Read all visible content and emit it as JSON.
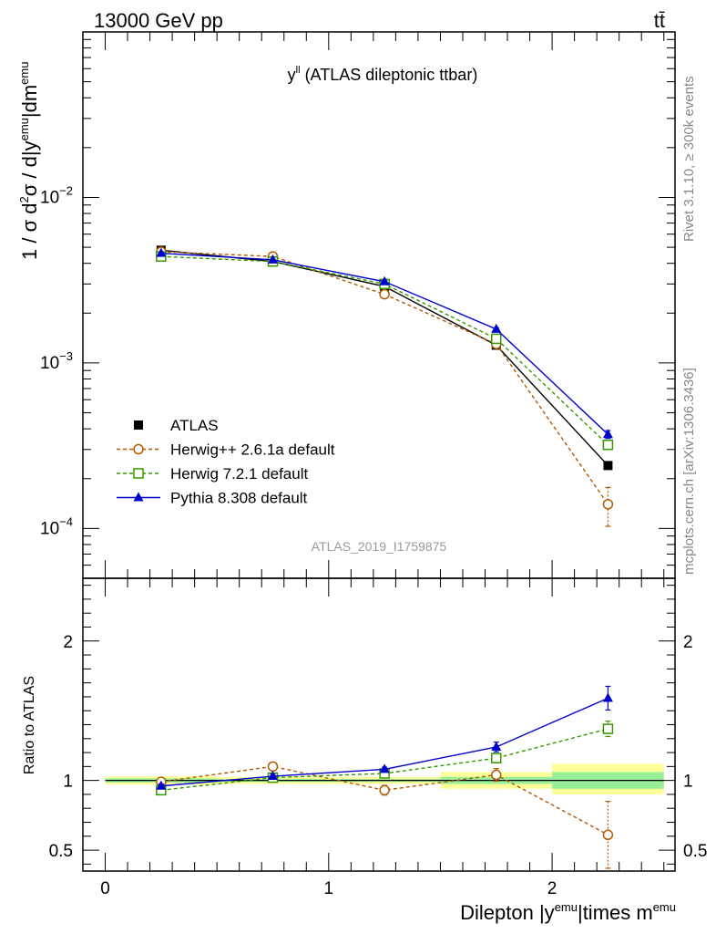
{
  "header": {
    "energy_label": "13000 GeV pp",
    "process_label": "tt̄"
  },
  "side": {
    "rivet_label": "Rivet 3.1.10, ≥ 300k events",
    "source_label": "mcplots.cern.ch [arXiv:1306.3436]"
  },
  "chart_data": [
    {
      "type": "line",
      "panel": "main",
      "title_main": "y",
      "title_sup": "ll",
      "title_rest": " (ATLAS dileptonic ttbar)",
      "analysis_label": "ATLAS_2019_I1759875",
      "ylabel": "1 / σ d²σ / d|y^emu|dm^emu",
      "yscale": "log",
      "ylim": [
        5e-05,
        0.1
      ],
      "y_ticks": [
        {
          "value": 0.01,
          "base": "10",
          "exp": "−2"
        },
        {
          "value": 0.001,
          "base": "10",
          "exp": "−3"
        },
        {
          "value": 0.0001,
          "base": "10",
          "exp": "−4"
        }
      ],
      "x": [
        0.25,
        0.75,
        1.25,
        1.75,
        2.25
      ],
      "series": [
        {
          "name": "ATLAS",
          "color": "#000000",
          "marker": "square-filled",
          "dash": "none",
          "values": [
            0.0048,
            0.0041,
            0.0029,
            0.00128,
            0.00024
          ]
        },
        {
          "name": "Herwig++ 2.6.1a default",
          "color": "#b35900",
          "marker": "circle-open",
          "dash": "4,3",
          "values": [
            0.0047,
            0.0044,
            0.0026,
            0.0013,
            0.00014
          ],
          "errors": [
            7e-05,
            7e-05,
            6e-05,
            4e-05,
            3.7e-05
          ]
        },
        {
          "name": "Herwig 7.2.1 default",
          "color": "#339900",
          "marker": "square-open",
          "dash": "4,3",
          "values": [
            0.0044,
            0.0041,
            0.003,
            0.0014,
            0.00032
          ],
          "errors": [
            4e-05,
            4e-05,
            4e-05,
            3e-05,
            1.5e-05
          ]
        },
        {
          "name": "Pythia 8.308 default",
          "color": "#0000cc",
          "marker": "triangle-filled",
          "dash": "none",
          "values": [
            0.0046,
            0.0042,
            0.0031,
            0.0016,
            0.00037
          ],
          "errors": [
            4e-05,
            4e-05,
            4e-05,
            3e-05,
            2e-05
          ]
        }
      ]
    },
    {
      "type": "line",
      "panel": "ratio",
      "ylabel": "Ratio to ATLAS",
      "xlabel": "Dilepton |y^emu|times m^emu",
      "xlim": [
        -0.1,
        2.55
      ],
      "ylim": [
        0.35,
        2.45
      ],
      "x_ticks": [
        0,
        1,
        2
      ],
      "y_ticks": [
        0.5,
        1,
        2
      ],
      "x": [
        0.25,
        0.75,
        1.25,
        1.75,
        2.25
      ],
      "bands": [
        {
          "x_low": 0.0,
          "x_high": 0.5,
          "inner": [
            0.985,
            1.015
          ],
          "outer": [
            0.97,
            1.03
          ]
        },
        {
          "x_low": 0.5,
          "x_high": 1.0,
          "inner": [
            0.99,
            1.01
          ],
          "outer": [
            0.975,
            1.025
          ]
        },
        {
          "x_low": 1.0,
          "x_high": 1.5,
          "inner": [
            0.99,
            1.01
          ],
          "outer": [
            0.975,
            1.025
          ]
        },
        {
          "x_low": 1.5,
          "x_high": 2.0,
          "inner": [
            0.975,
            1.025
          ],
          "outer": [
            0.94,
            1.06
          ]
        },
        {
          "x_low": 2.0,
          "x_high": 2.5,
          "inner": [
            0.94,
            1.06
          ],
          "outer": [
            0.9,
            1.12
          ]
        }
      ],
      "series": [
        {
          "name": "Herwig++ 2.6.1a default",
          "color": "#b35900",
          "marker": "circle-open",
          "dash": "4,3",
          "values": [
            0.99,
            1.1,
            0.93,
            1.04,
            0.61
          ],
          "errors": [
            0.025,
            0.025,
            0.035,
            0.045,
            0.24
          ]
        },
        {
          "name": "Herwig 7.2.1 default",
          "color": "#339900",
          "marker": "square-open",
          "dash": "4,3",
          "values": [
            0.93,
            1.02,
            1.05,
            1.16,
            1.37
          ],
          "errors": [
            0.015,
            0.015,
            0.015,
            0.025,
            0.055
          ]
        },
        {
          "name": "Pythia 8.308 default",
          "color": "#0000cc",
          "marker": "triangle-filled",
          "dash": "none",
          "values": [
            0.96,
            1.03,
            1.08,
            1.24,
            1.59
          ],
          "errors": [
            0.015,
            0.015,
            0.015,
            0.035,
            0.085
          ]
        }
      ]
    }
  ]
}
